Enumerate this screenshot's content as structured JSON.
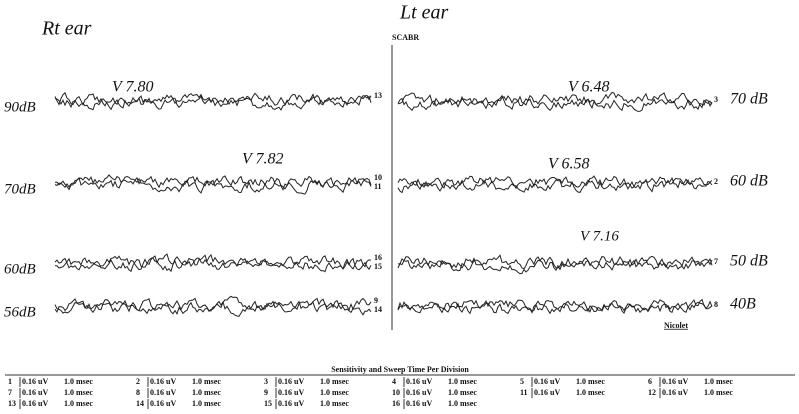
{
  "header": {
    "left": "Rt ear",
    "right": "Lt ear",
    "label": "SCABR"
  },
  "rows": [
    {
      "left_level": "90dB",
      "left_channels": [
        "13"
      ],
      "right_channels": [
        "3"
      ],
      "right_level": "70 dB"
    },
    {
      "left_level": "70dB",
      "left_channels": [
        "10",
        "11"
      ],
      "right_channels": [
        "2"
      ],
      "right_level": "60 dB"
    },
    {
      "left_level": "60dB",
      "left_channels": [
        "16",
        "15"
      ],
      "right_channels": [
        "7"
      ],
      "right_level": "50 dB"
    },
    {
      "left_level": "56dB",
      "left_channels": [
        "9",
        "14"
      ],
      "right_channels": [
        "8"
      ],
      "right_level": "40B"
    }
  ],
  "annotations": [
    "V 7.80",
    "V 7.82",
    "V 6.48",
    "V 6.58",
    "V 7.16"
  ],
  "brand": "Nicolet",
  "table": {
    "title": "Sensitivity and Sweep Time Per Division",
    "rows": [
      [
        [
          "1",
          "0.16 uV",
          "1.0 msec"
        ],
        [
          "2",
          "0.16 uV",
          "1.0 msec"
        ],
        [
          "3",
          "0.16 uV",
          "1.0 msec"
        ],
        [
          "4",
          "0.16 uV",
          "1.0 msec"
        ],
        [
          "5",
          "0.16 uV",
          "1.0 msec"
        ],
        [
          "6",
          "0.16 uV",
          "1.0 msec"
        ]
      ],
      [
        [
          "7",
          "0.16 uV",
          "1.0 msec"
        ],
        [
          "8",
          "0.16 uV",
          "1.0 msec"
        ],
        [
          "9",
          "0.16 uV",
          "1.0 msec"
        ],
        [
          "10",
          "0.16 uV",
          "1.0 msec"
        ],
        [
          "11",
          "0.16 uV",
          "1.0 msec"
        ],
        [
          "12",
          "0.16 uV",
          "1.0 msec"
        ]
      ],
      [
        [
          "13",
          "0.16 uV",
          "1.0 msec"
        ],
        [
          "14",
          "0.16 uV",
          "1.0 msec"
        ],
        [
          "15",
          "0.16 uV",
          "1.0 msec"
        ],
        [
          "16",
          "0.16 uV",
          "1.0 msec"
        ]
      ]
    ]
  }
}
